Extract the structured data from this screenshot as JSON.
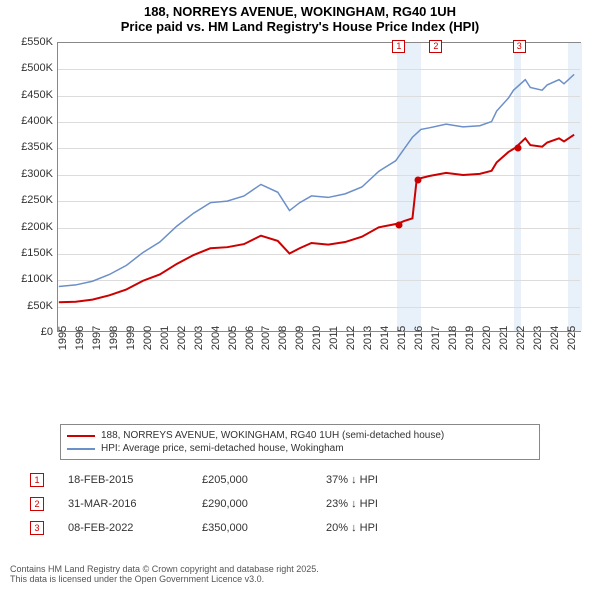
{
  "title": "188, NORREYS AVENUE, WOKINGHAM, RG40 1UH",
  "subtitle": "Price paid vs. HM Land Registry's House Price Index (HPI)",
  "chart": {
    "type": "line",
    "background_color": "#ffffff",
    "grid_color": "#dcdcdc",
    "highlight_color": "#e8f0fa",
    "x_range": [
      1995,
      2025.9
    ],
    "y_range": [
      0,
      550
    ],
    "y_ticks": [
      0,
      50,
      100,
      150,
      200,
      250,
      300,
      350,
      400,
      450,
      500,
      550
    ],
    "y_tick_labels": [
      "£0",
      "£50K",
      "£100K",
      "£150K",
      "£200K",
      "£250K",
      "£300K",
      "£350K",
      "£400K",
      "£450K",
      "£500K",
      "£550K"
    ],
    "x_ticks": [
      1995,
      1996,
      1997,
      1998,
      1999,
      2000,
      2001,
      2002,
      2003,
      2004,
      2005,
      2006,
      2007,
      2008,
      2009,
      2010,
      2011,
      2012,
      2013,
      2014,
      2015,
      2016,
      2017,
      2018,
      2019,
      2020,
      2021,
      2022,
      2023,
      2024,
      2025
    ],
    "series": [
      {
        "name": "hpi",
        "color": "#6b8fc9",
        "width": 1.5,
        "points": [
          [
            1995,
            85
          ],
          [
            1996,
            88
          ],
          [
            1997,
            95
          ],
          [
            1998,
            108
          ],
          [
            1999,
            125
          ],
          [
            2000,
            150
          ],
          [
            2001,
            170
          ],
          [
            2002,
            200
          ],
          [
            2003,
            225
          ],
          [
            2004,
            245
          ],
          [
            2005,
            248
          ],
          [
            2006,
            258
          ],
          [
            2007,
            280
          ],
          [
            2008,
            265
          ],
          [
            2008.7,
            230
          ],
          [
            2009.3,
            245
          ],
          [
            2010,
            258
          ],
          [
            2011,
            255
          ],
          [
            2012,
            262
          ],
          [
            2013,
            275
          ],
          [
            2014,
            305
          ],
          [
            2015,
            325
          ],
          [
            2016,
            370
          ],
          [
            2016.5,
            385
          ],
          [
            2017,
            388
          ],
          [
            2018,
            395
          ],
          [
            2019,
            390
          ],
          [
            2020,
            392
          ],
          [
            2020.7,
            400
          ],
          [
            2021,
            420
          ],
          [
            2021.7,
            445
          ],
          [
            2022,
            460
          ],
          [
            2022.7,
            480
          ],
          [
            2023,
            465
          ],
          [
            2023.7,
            460
          ],
          [
            2024,
            470
          ],
          [
            2024.7,
            480
          ],
          [
            2025,
            472
          ],
          [
            2025.6,
            490
          ]
        ]
      },
      {
        "name": "price_paid",
        "color": "#cc0000",
        "width": 2,
        "points": [
          [
            1995,
            55
          ],
          [
            1996,
            56
          ],
          [
            1997,
            60
          ],
          [
            1998,
            68
          ],
          [
            1999,
            79
          ],
          [
            2000,
            96
          ],
          [
            2001,
            108
          ],
          [
            2002,
            128
          ],
          [
            2003,
            145
          ],
          [
            2004,
            158
          ],
          [
            2005,
            160
          ],
          [
            2006,
            166
          ],
          [
            2007,
            182
          ],
          [
            2008,
            172
          ],
          [
            2008.7,
            148
          ],
          [
            2009.3,
            158
          ],
          [
            2010,
            168
          ],
          [
            2011,
            165
          ],
          [
            2012,
            170
          ],
          [
            2013,
            180
          ],
          [
            2014,
            198
          ],
          [
            2015.13,
            205
          ],
          [
            2015.5,
            210
          ],
          [
            2016,
            215
          ],
          [
            2016.25,
            290
          ],
          [
            2017,
            296
          ],
          [
            2018,
            302
          ],
          [
            2019,
            298
          ],
          [
            2020,
            300
          ],
          [
            2020.7,
            306
          ],
          [
            2021,
            322
          ],
          [
            2021.7,
            342
          ],
          [
            2022.11,
            350
          ],
          [
            2022.7,
            368
          ],
          [
            2023,
            355
          ],
          [
            2023.7,
            352
          ],
          [
            2024,
            360
          ],
          [
            2024.7,
            368
          ],
          [
            2025,
            362
          ],
          [
            2025.6,
            375
          ]
        ]
      }
    ],
    "highlight_bands": [
      {
        "from": 2015.0,
        "to": 2016.4
      },
      {
        "from": 2021.9,
        "to": 2022.3
      },
      {
        "from": 2025.1,
        "to": 2025.9
      }
    ],
    "markers": [
      {
        "n": "1",
        "year": 2015.13,
        "price": 205,
        "date": "18-FEB-2015",
        "price_label": "£205,000",
        "delta": "37% ↓ HPI"
      },
      {
        "n": "2",
        "year": 2016.25,
        "price": 290,
        "date": "31-MAR-2016",
        "price_label": "£290,000",
        "delta": "23% ↓ HPI"
      },
      {
        "n": "3",
        "year": 2022.11,
        "price": 350,
        "date": "08-FEB-2022",
        "price_label": "£350,000",
        "delta": "20% ↓ HPI"
      }
    ]
  },
  "legend": {
    "series1_label": "188, NORREYS AVENUE, WOKINGHAM, RG40 1UH (semi-detached house)",
    "series1_color": "#cc0000",
    "series2_label": "HPI: Average price, semi-detached house, Wokingham",
    "series2_color": "#6b8fc9"
  },
  "footer": {
    "line1": "Contains HM Land Registry data © Crown copyright and database right 2025.",
    "line2": "This data is licensed under the Open Government Licence v3.0."
  }
}
